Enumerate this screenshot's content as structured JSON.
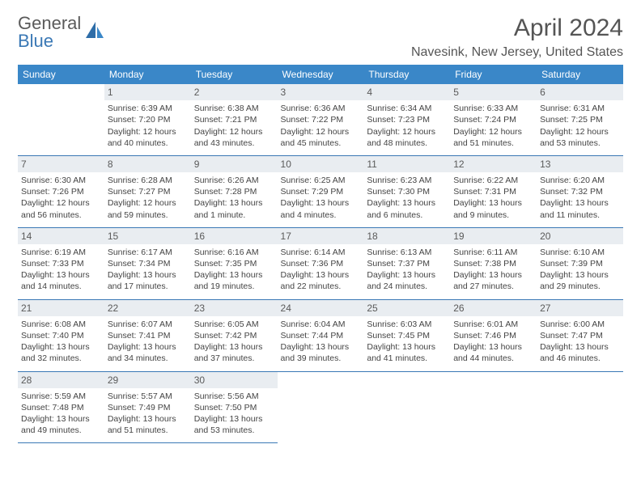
{
  "logo": {
    "line1": "General",
    "line2": "Blue"
  },
  "title": "April 2024",
  "location": "Navesink, New Jersey, United States",
  "weekdays": [
    "Sunday",
    "Monday",
    "Tuesday",
    "Wednesday",
    "Thursday",
    "Friday",
    "Saturday"
  ],
  "colors": {
    "header_bg": "#3a87c8",
    "header_fg": "#ffffff",
    "daynum_bg": "#e9edf1",
    "border": "#3a78b5",
    "logo_gray": "#5a5a5a",
    "logo_blue": "#3a78b5"
  },
  "start_weekday": 1,
  "days": [
    {
      "n": 1,
      "sunrise": "6:39 AM",
      "sunset": "7:20 PM",
      "daylight": "12 hours and 40 minutes."
    },
    {
      "n": 2,
      "sunrise": "6:38 AM",
      "sunset": "7:21 PM",
      "daylight": "12 hours and 43 minutes."
    },
    {
      "n": 3,
      "sunrise": "6:36 AM",
      "sunset": "7:22 PM",
      "daylight": "12 hours and 45 minutes."
    },
    {
      "n": 4,
      "sunrise": "6:34 AM",
      "sunset": "7:23 PM",
      "daylight": "12 hours and 48 minutes."
    },
    {
      "n": 5,
      "sunrise": "6:33 AM",
      "sunset": "7:24 PM",
      "daylight": "12 hours and 51 minutes."
    },
    {
      "n": 6,
      "sunrise": "6:31 AM",
      "sunset": "7:25 PM",
      "daylight": "12 hours and 53 minutes."
    },
    {
      "n": 7,
      "sunrise": "6:30 AM",
      "sunset": "7:26 PM",
      "daylight": "12 hours and 56 minutes."
    },
    {
      "n": 8,
      "sunrise": "6:28 AM",
      "sunset": "7:27 PM",
      "daylight": "12 hours and 59 minutes."
    },
    {
      "n": 9,
      "sunrise": "6:26 AM",
      "sunset": "7:28 PM",
      "daylight": "13 hours and 1 minute."
    },
    {
      "n": 10,
      "sunrise": "6:25 AM",
      "sunset": "7:29 PM",
      "daylight": "13 hours and 4 minutes."
    },
    {
      "n": 11,
      "sunrise": "6:23 AM",
      "sunset": "7:30 PM",
      "daylight": "13 hours and 6 minutes."
    },
    {
      "n": 12,
      "sunrise": "6:22 AM",
      "sunset": "7:31 PM",
      "daylight": "13 hours and 9 minutes."
    },
    {
      "n": 13,
      "sunrise": "6:20 AM",
      "sunset": "7:32 PM",
      "daylight": "13 hours and 11 minutes."
    },
    {
      "n": 14,
      "sunrise": "6:19 AM",
      "sunset": "7:33 PM",
      "daylight": "13 hours and 14 minutes."
    },
    {
      "n": 15,
      "sunrise": "6:17 AM",
      "sunset": "7:34 PM",
      "daylight": "13 hours and 17 minutes."
    },
    {
      "n": 16,
      "sunrise": "6:16 AM",
      "sunset": "7:35 PM",
      "daylight": "13 hours and 19 minutes."
    },
    {
      "n": 17,
      "sunrise": "6:14 AM",
      "sunset": "7:36 PM",
      "daylight": "13 hours and 22 minutes."
    },
    {
      "n": 18,
      "sunrise": "6:13 AM",
      "sunset": "7:37 PM",
      "daylight": "13 hours and 24 minutes."
    },
    {
      "n": 19,
      "sunrise": "6:11 AM",
      "sunset": "7:38 PM",
      "daylight": "13 hours and 27 minutes."
    },
    {
      "n": 20,
      "sunrise": "6:10 AM",
      "sunset": "7:39 PM",
      "daylight": "13 hours and 29 minutes."
    },
    {
      "n": 21,
      "sunrise": "6:08 AM",
      "sunset": "7:40 PM",
      "daylight": "13 hours and 32 minutes."
    },
    {
      "n": 22,
      "sunrise": "6:07 AM",
      "sunset": "7:41 PM",
      "daylight": "13 hours and 34 minutes."
    },
    {
      "n": 23,
      "sunrise": "6:05 AM",
      "sunset": "7:42 PM",
      "daylight": "13 hours and 37 minutes."
    },
    {
      "n": 24,
      "sunrise": "6:04 AM",
      "sunset": "7:44 PM",
      "daylight": "13 hours and 39 minutes."
    },
    {
      "n": 25,
      "sunrise": "6:03 AM",
      "sunset": "7:45 PM",
      "daylight": "13 hours and 41 minutes."
    },
    {
      "n": 26,
      "sunrise": "6:01 AM",
      "sunset": "7:46 PM",
      "daylight": "13 hours and 44 minutes."
    },
    {
      "n": 27,
      "sunrise": "6:00 AM",
      "sunset": "7:47 PM",
      "daylight": "13 hours and 46 minutes."
    },
    {
      "n": 28,
      "sunrise": "5:59 AM",
      "sunset": "7:48 PM",
      "daylight": "13 hours and 49 minutes."
    },
    {
      "n": 29,
      "sunrise": "5:57 AM",
      "sunset": "7:49 PM",
      "daylight": "13 hours and 51 minutes."
    },
    {
      "n": 30,
      "sunrise": "5:56 AM",
      "sunset": "7:50 PM",
      "daylight": "13 hours and 53 minutes."
    }
  ],
  "labels": {
    "sunrise": "Sunrise:",
    "sunset": "Sunset:",
    "daylight": "Daylight:"
  }
}
